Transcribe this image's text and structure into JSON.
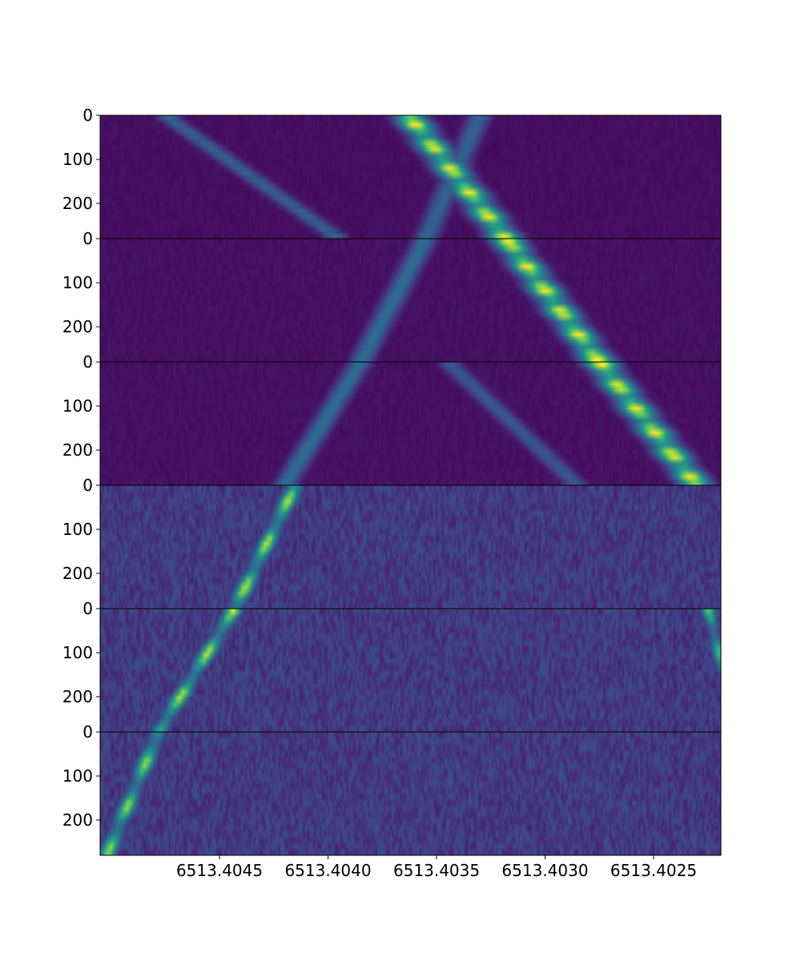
{
  "chart_data": {
    "type": "heatmap",
    "title": "",
    "xlabel": "",
    "ylabel": "",
    "colormap": "viridis",
    "colors": {
      "background": "#440154",
      "noise_background": "#3b518b",
      "peak": "#fde725",
      "axes": "#000000"
    },
    "x_axis": {
      "reversed": true,
      "xlim": [
        6513.40505,
        6513.40219
      ],
      "ticks": [
        6513.4045,
        6513.404,
        6513.4035,
        6513.403,
        6513.4025
      ],
      "tick_labels": [
        "6513.4045",
        "6513.4040",
        "6513.4035",
        "6513.4030",
        "6513.4025"
      ]
    },
    "panels": [
      {
        "index": 0,
        "ylim": [
          0,
          280
        ],
        "ytick_labels": [
          "0",
          "100",
          "200"
        ],
        "noise_level": 0.05,
        "features": [
          {
            "kind": "diffuse-line",
            "x_at_top": 6513.40475,
            "x_at_bottom": 6513.40395,
            "peak": 0.4,
            "width": 8e-05
          },
          {
            "kind": "diffuse-line",
            "x_at_top": 6513.4033,
            "x_at_bottom": 6513.40355,
            "peak": 0.4,
            "width": 8e-05
          },
          {
            "kind": "bright-line",
            "x_at_top": 6513.40363,
            "x_at_bottom": 6513.40318,
            "peak": 1.0,
            "width": 0.00011
          }
        ]
      },
      {
        "index": 1,
        "ylim": [
          0,
          280
        ],
        "ytick_labels": [
          "0",
          "100",
          "200"
        ],
        "noise_level": 0.06,
        "features": [
          {
            "kind": "diffuse-line",
            "x_at_top": 6513.40355,
            "x_at_bottom": 6513.40385,
            "peak": 0.45,
            "width": 8e-05
          },
          {
            "kind": "bright-line",
            "x_at_top": 6513.40318,
            "x_at_bottom": 6513.40275,
            "peak": 1.0,
            "width": 0.00011
          }
        ]
      },
      {
        "index": 2,
        "ylim": [
          0,
          280
        ],
        "ytick_labels": [
          "0",
          "100",
          "200"
        ],
        "noise_level": 0.06,
        "features": [
          {
            "kind": "diffuse-line",
            "x_at_top": 6513.40385,
            "x_at_bottom": 6513.4042,
            "peak": 0.45,
            "width": 8e-05
          },
          {
            "kind": "diffuse-line",
            "x_at_top": 6513.40345,
            "x_at_bottom": 6513.40285,
            "peak": 0.35,
            "width": 8e-05
          },
          {
            "kind": "bright-line",
            "x_at_top": 6513.40275,
            "x_at_bottom": 6513.4023,
            "peak": 1.0,
            "width": 0.00011
          }
        ]
      },
      {
        "index": 3,
        "ylim": [
          0,
          280
        ],
        "ytick_labels": [
          "0",
          "100",
          "200"
        ],
        "noise_level": 0.22,
        "features": [
          {
            "kind": "medium-line",
            "x_at_top": 6513.40415,
            "x_at_bottom": 6513.40443,
            "peak": 0.9,
            "width": 6e-05
          }
        ]
      },
      {
        "index": 4,
        "ylim": [
          0,
          280
        ],
        "ytick_labels": [
          "0",
          "100",
          "200"
        ],
        "noise_level": 0.22,
        "features": [
          {
            "kind": "medium-line",
            "x_at_top": 6513.40443,
            "x_at_bottom": 6513.40478,
            "peak": 0.9,
            "width": 6e-05
          },
          {
            "kind": "medium-line",
            "x_at_top": 6513.40225,
            "x_at_bottom": 6513.4021,
            "peak": 0.75,
            "width": 5e-05
          }
        ]
      },
      {
        "index": 5,
        "ylim": [
          0,
          280
        ],
        "ytick_labels": [
          "0",
          "100",
          "200"
        ],
        "noise_level": 0.22,
        "features": [
          {
            "kind": "medium-line",
            "x_at_top": 6513.40478,
            "x_at_bottom": 6513.40502,
            "peak": 0.85,
            "width": 6e-05
          }
        ]
      }
    ]
  }
}
